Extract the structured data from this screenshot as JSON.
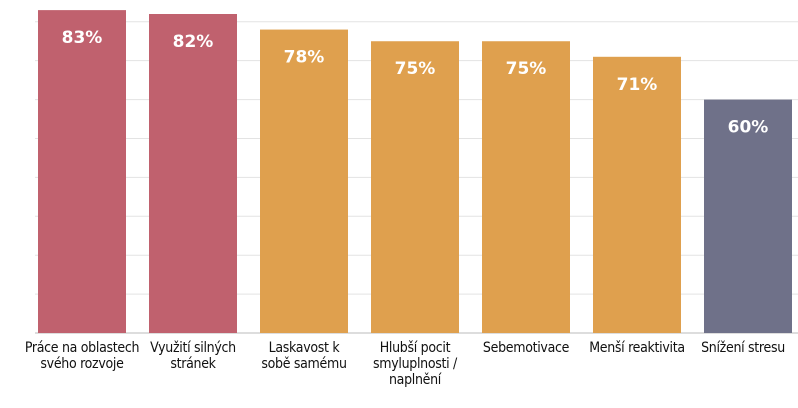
{
  "chart_data": {
    "type": "bar",
    "categories": [
      "Práce na oblastech svého rozvoje",
      "Využití silných stránek",
      "Laskavost k sobě samému",
      "Hlubší pocit smyluplnosti / naplnění",
      "Sebemotivace",
      "Menší reaktivita",
      "Snížení stresu"
    ],
    "values": [
      83,
      82,
      78,
      75,
      75,
      71,
      60
    ],
    "value_labels": [
      "83%",
      "82%",
      "78%",
      "75%",
      "75%",
      "71%",
      "60%"
    ],
    "colors": [
      "#c0616e",
      "#c0616e",
      "#dfa04e",
      "#dfa04e",
      "#dfa04e",
      "#dfa04e",
      "#6f7189"
    ],
    "ylim": [
      0,
      85.6
    ],
    "yticks": [
      0,
      10,
      20,
      30,
      40,
      50,
      60,
      70,
      80
    ],
    "grid": true
  }
}
